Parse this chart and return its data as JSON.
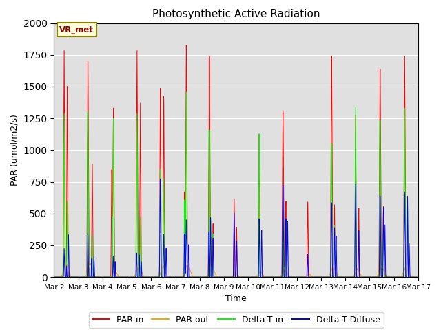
{
  "title": "Photosynthetic Active Radiation",
  "ylabel": "PAR (umol/m2/s)",
  "xlabel": "Time",
  "annotation": "VR_met",
  "legend": [
    "PAR in",
    "PAR out",
    "Delta-T in",
    "Delta-T Diffuse"
  ],
  "colors": [
    "red",
    "orange",
    "lime",
    "blue"
  ],
  "ylim": [
    0,
    2000
  ],
  "xlim": [
    0,
    15
  ],
  "background_color": "#e0e0e0",
  "days": [
    "Mar 2",
    "Mar 3",
    "Mar 4",
    "Mar 5",
    "Mar 6",
    "Mar 7",
    "Mar 8",
    "Mar 9",
    "Mar 10",
    "Mar 11",
    "Mar 12",
    "Mar 13",
    "Mar 14",
    "Mar 15",
    "Mar 16",
    "Mar 17"
  ]
}
